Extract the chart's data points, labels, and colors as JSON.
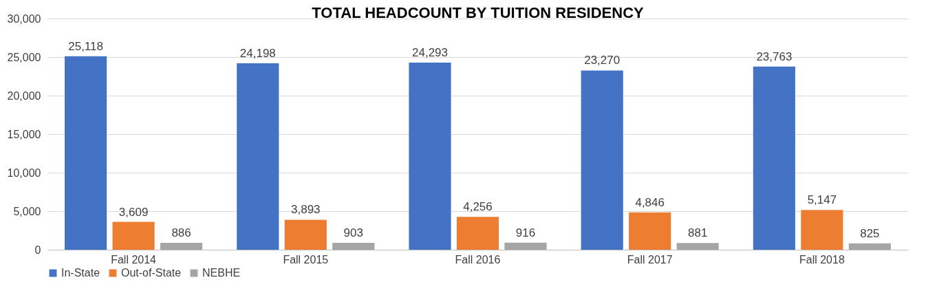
{
  "chart_data": {
    "type": "bar",
    "title": "TOTAL HEADCOUNT BY TUITION RESIDENCY",
    "categories": [
      "Fall 2014",
      "Fall 2015",
      "Fall 2016",
      "Fall 2017",
      "Fall 2018"
    ],
    "series": [
      {
        "name": "In-State",
        "color": "#4472c4",
        "values": [
          25118,
          24198,
          24293,
          23270,
          23763
        ],
        "value_labels": [
          "25,118",
          "24,198",
          "24,293",
          "23,270",
          "23,763"
        ]
      },
      {
        "name": "Out-of-State",
        "color": "#ed7d31",
        "values": [
          3609,
          3893,
          4256,
          4846,
          5147
        ],
        "value_labels": [
          "3,609",
          "3,893",
          "4,256",
          "4,846",
          "5,147"
        ]
      },
      {
        "name": "NEBHE",
        "color": "#a5a5a5",
        "values": [
          886,
          903,
          916,
          881,
          825
        ],
        "value_labels": [
          "886",
          "903",
          "916",
          "881",
          "825"
        ]
      }
    ],
    "ylim": [
      0,
      30000
    ],
    "yticks": [
      0,
      {
        "value": 5000,
        "label": "5,000"
      },
      {
        "value": 10000,
        "label": "10,000"
      },
      {
        "value": 15000,
        "label": "15,000"
      },
      {
        "value": 20000,
        "label": "20,000"
      },
      {
        "value": 25000,
        "label": "25,000"
      },
      {
        "value": 30000,
        "label": "30,000"
      }
    ],
    "grid": "y",
    "legend": "bottom"
  }
}
